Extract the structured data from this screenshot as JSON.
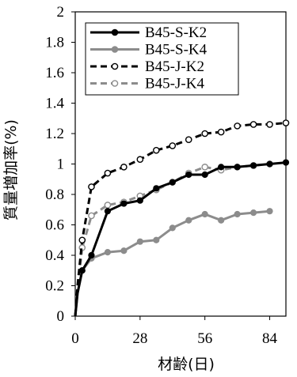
{
  "chart_data": {
    "type": "line",
    "title": "",
    "xlabel": "材齢(日)",
    "ylabel": "質量増加率(%)",
    "xlim": [
      0,
      91
    ],
    "ylim": [
      0,
      2
    ],
    "xticks": [
      0,
      28,
      56,
      84
    ],
    "yticks": [
      0,
      0.2,
      0.4,
      0.6,
      0.8,
      1,
      1.2,
      1.4,
      1.6,
      1.8,
      2
    ],
    "ytick_labels": [
      "0",
      "0.2",
      "0.4",
      "0.6",
      "0.8",
      "1",
      "1.2",
      "1.4",
      "1.6",
      "1.8",
      "2"
    ],
    "xtick_labels": [
      "0",
      "28",
      "56",
      "84"
    ],
    "grid": false,
    "legend_position": "top-right",
    "series": [
      {
        "name": "B45-S-K2",
        "color": "#000000",
        "dash": "solid",
        "marker": "filled",
        "x": [
          0,
          1,
          3,
          7,
          14,
          21,
          28,
          35,
          42,
          49,
          56,
          63,
          70,
          77,
          84,
          91
        ],
        "y": [
          0,
          0.15,
          0.3,
          0.4,
          0.69,
          0.74,
          0.76,
          0.84,
          0.88,
          0.93,
          0.93,
          0.98,
          0.98,
          0.99,
          1.0,
          1.01
        ]
      },
      {
        "name": "B45-S-K4",
        "color": "#8c8c8c",
        "dash": "solid",
        "marker": "filled",
        "x": [
          0,
          1,
          3,
          7,
          14,
          21,
          28,
          35,
          42,
          49,
          56,
          63,
          70,
          77,
          84
        ],
        "y": [
          0,
          0.15,
          0.3,
          0.38,
          0.42,
          0.43,
          0.49,
          0.5,
          0.58,
          0.63,
          0.67,
          0.63,
          0.67,
          0.68,
          0.69
        ]
      },
      {
        "name": "B45-J-K2",
        "color": "#000000",
        "dash": "dashed",
        "marker": "hollow",
        "x": [
          0,
          1,
          3,
          7,
          14,
          21,
          28,
          35,
          42,
          49,
          56,
          63,
          70,
          77,
          84,
          91
        ],
        "y": [
          0,
          0.2,
          0.5,
          0.85,
          0.94,
          0.98,
          1.03,
          1.09,
          1.12,
          1.16,
          1.2,
          1.21,
          1.25,
          1.26,
          1.26,
          1.27
        ]
      },
      {
        "name": "B45-J-K4",
        "color": "#8c8c8c",
        "dash": "dashed",
        "marker": "hollow",
        "x": [
          0,
          1,
          3,
          7,
          14,
          21,
          28,
          35,
          42,
          49,
          56,
          63,
          70,
          77,
          84
        ],
        "y": [
          0,
          0.17,
          0.45,
          0.66,
          0.73,
          0.75,
          0.79,
          0.83,
          0.88,
          0.94,
          0.98,
          0.96,
          0.98,
          0.99,
          1.0
        ]
      }
    ]
  }
}
